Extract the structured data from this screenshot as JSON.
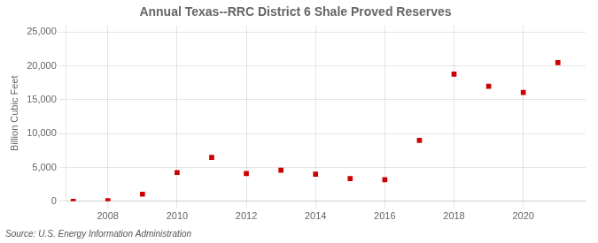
{
  "chart_data": {
    "type": "scatter",
    "title": "Annual Texas--RRC District 6 Shale Proved Reserves",
    "ylabel": "Billion Cubic Feet",
    "annotation": "Source: U.S. Energy Information Administration",
    "x": [
      2007,
      2008,
      2009,
      2010,
      2011,
      2012,
      2013,
      2014,
      2015,
      2016,
      2017,
      2018,
      2019,
      2020,
      2021
    ],
    "values": [
      2,
      100,
      1050,
      4250,
      6500,
      4100,
      4600,
      4000,
      3350,
      3200,
      9000,
      18800,
      17000,
      16100,
      20500
    ],
    "color": "#cc0000",
    "marker": "square",
    "xlim": [
      2006.8,
      2021.8
    ],
    "xticks": [
      2008,
      2010,
      2012,
      2014,
      2016,
      2018,
      2020
    ],
    "ylim": [
      0,
      26000
    ],
    "yticks": [
      0,
      {
        "value": 5000,
        "label": "5,000"
      },
      {
        "value": 10000,
        "label": "10,000"
      },
      {
        "value": 15000,
        "label": "15,000"
      },
      {
        "value": 20000,
        "label": "20,000"
      },
      {
        "value": 25000,
        "label": "25,000"
      }
    ],
    "grid": true
  }
}
